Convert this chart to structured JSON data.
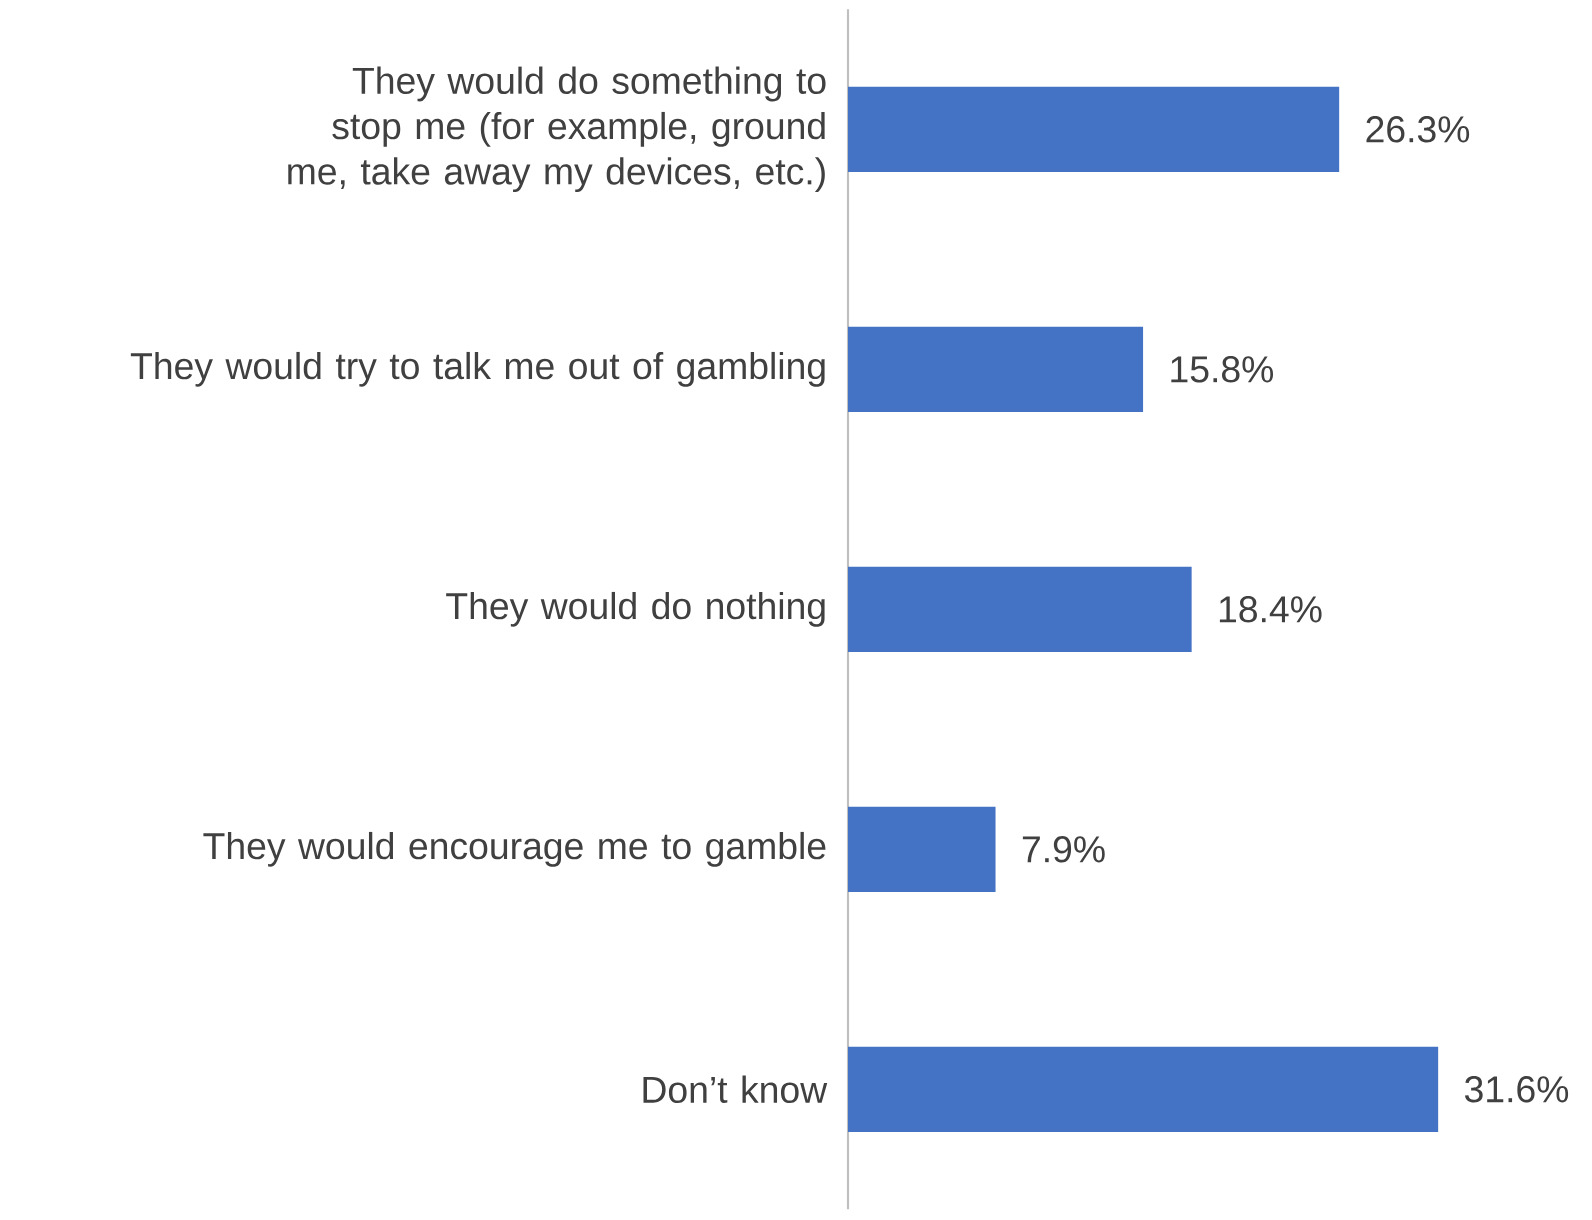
{
  "chart_data": {
    "type": "bar",
    "orientation": "horizontal",
    "categories": [
      "They would do something to stop me (for example, ground me, take away my devices, etc.)",
      "They would try to talk me out of gambling",
      "They would do nothing",
      "They would encourage me to gamble",
      "Don’t know"
    ],
    "values": [
      26.3,
      15.8,
      18.4,
      7.9,
      31.6
    ],
    "value_labels": [
      "26.3%",
      "15.8%",
      "18.4%",
      "7.9%",
      "31.6%"
    ],
    "color": "#4472c4"
  }
}
